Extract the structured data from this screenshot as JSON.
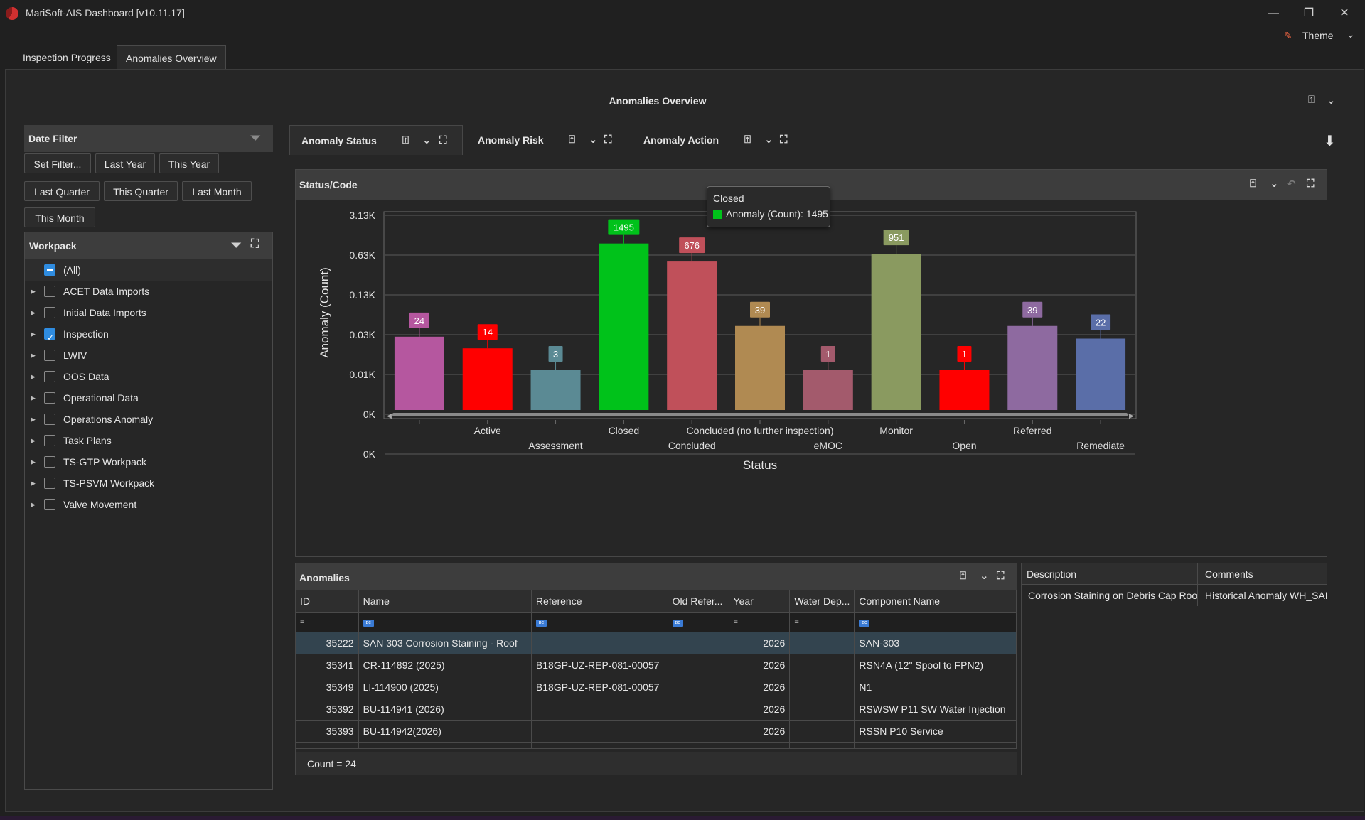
{
  "app": {
    "title": "MariSoft-AIS Dashboard [v10.11.17]",
    "theme_label": "Theme"
  },
  "window": {
    "minimize": "—",
    "restore": "❐",
    "close": "✕"
  },
  "main_tabs": [
    {
      "label": "Inspection Progress",
      "active": false
    },
    {
      "label": "Anomalies Overview",
      "active": true
    }
  ],
  "dashboard": {
    "title": "Anomalies Overview"
  },
  "date_filter": {
    "title": "Date Filter",
    "buttons": [
      "Set Filter...",
      "Last Year",
      "This Year",
      "Last Quarter",
      "This Quarter",
      "Last Month",
      "This Month"
    ]
  },
  "workpack": {
    "title": "Workpack",
    "items": [
      {
        "label": "(All)",
        "state": "partial",
        "expandable": false
      },
      {
        "label": "ACET Data Imports",
        "state": "unchecked",
        "expandable": true
      },
      {
        "label": "Initial Data Imports",
        "state": "unchecked",
        "expandable": true
      },
      {
        "label": "Inspection",
        "state": "checked",
        "expandable": true
      },
      {
        "label": "LWIV",
        "state": "unchecked",
        "expandable": true
      },
      {
        "label": "OOS Data",
        "state": "unchecked",
        "expandable": true
      },
      {
        "label": "Operational Data",
        "state": "unchecked",
        "expandable": true
      },
      {
        "label": "Operations Anomaly",
        "state": "unchecked",
        "expandable": true
      },
      {
        "label": "Task Plans",
        "state": "unchecked",
        "expandable": true
      },
      {
        "label": "TS-GTP Workpack",
        "state": "unchecked",
        "expandable": true
      },
      {
        "label": "TS-PSVM Workpack",
        "state": "unchecked",
        "expandable": true
      },
      {
        "label": "Valve Movement",
        "state": "unchecked",
        "expandable": true
      }
    ]
  },
  "chart_tabs": [
    {
      "label": "Anomaly Status",
      "active": true
    },
    {
      "label": "Anomaly Risk",
      "active": false
    },
    {
      "label": "Anomaly Action",
      "active": false
    }
  ],
  "chart_panel": {
    "title": "Status/Code"
  },
  "tooltip": {
    "title": "Closed",
    "series": "Anomaly (Count): 1495",
    "color": "#00c21a"
  },
  "chart_data": {
    "type": "bar",
    "xlabel": "Status",
    "ylabel": "Anomaly (Count)",
    "y_scale": "log",
    "y_ticks": [
      "3.13K",
      "0.63K",
      "0.13K",
      "0.03K",
      "0.01K",
      "0K",
      "0K"
    ],
    "categories": [
      "",
      "Active",
      "Assessment",
      "Closed",
      "Concluded",
      "Concluded (no further inspection)",
      "eMOC",
      "Monitor",
      "Open",
      "Referred",
      "Remediate"
    ],
    "values": [
      24,
      14,
      3,
      1495,
      676,
      39,
      1,
      951,
      1,
      39,
      22
    ],
    "colors": [
      "#b5579f",
      "#ff0000",
      "#5b8a94",
      "#00c21a",
      "#c0505a",
      "#b08a52",
      "#a35a6c",
      "#8a9a60",
      "#ff0000",
      "#8e6aa0",
      "#5a6ea8"
    ],
    "labels": [
      "24",
      "14",
      "3",
      "1495",
      "676",
      "39",
      "1",
      "951",
      "1",
      "39",
      "22"
    ]
  },
  "anomalies": {
    "title": "Anomalies",
    "columns": [
      "ID",
      "Name",
      "Reference",
      "Old Refer...",
      "Year",
      "Water Dep...",
      "Component Name"
    ],
    "filter_symbols": [
      "=",
      "abc",
      "abc",
      "abc",
      "=",
      "=",
      "abc"
    ],
    "rows": [
      {
        "id": "35222",
        "name": "SAN 303 Corrosion Staining - Roof",
        "reference": "",
        "old_ref": "",
        "year": "2026",
        "water_depth": "",
        "component": "SAN-303",
        "selected": true
      },
      {
        "id": "35341",
        "name": "CR-114892 (2025)",
        "reference": "B18GP-UZ-REP-081-00057",
        "old_ref": "",
        "year": "2026",
        "water_depth": "",
        "component": "RSN4A (12\" Spool to FPN2)",
        "selected": false
      },
      {
        "id": "35349",
        "name": "LI-114900 (2025)",
        "reference": "B18GP-UZ-REP-081-00057",
        "old_ref": "",
        "year": "2026",
        "water_depth": "",
        "component": "N1",
        "selected": false
      },
      {
        "id": "35392",
        "name": "BU-114941 (2026)",
        "reference": "",
        "old_ref": "",
        "year": "2026",
        "water_depth": "",
        "component": "RSWSW P11 SW Water Injection",
        "selected": false
      },
      {
        "id": "35393",
        "name": "BU-114942(2026)",
        "reference": "",
        "old_ref": "",
        "year": "2026",
        "water_depth": "",
        "component": "RSSN P10 Service",
        "selected": false
      }
    ],
    "footer": "Count = 24"
  },
  "details": {
    "columns": [
      "Description",
      "Comments"
    ],
    "description": "Corrosion Staining on Debris Cap Roof",
    "comments": "Historical Anomaly WH_SAN_"
  }
}
